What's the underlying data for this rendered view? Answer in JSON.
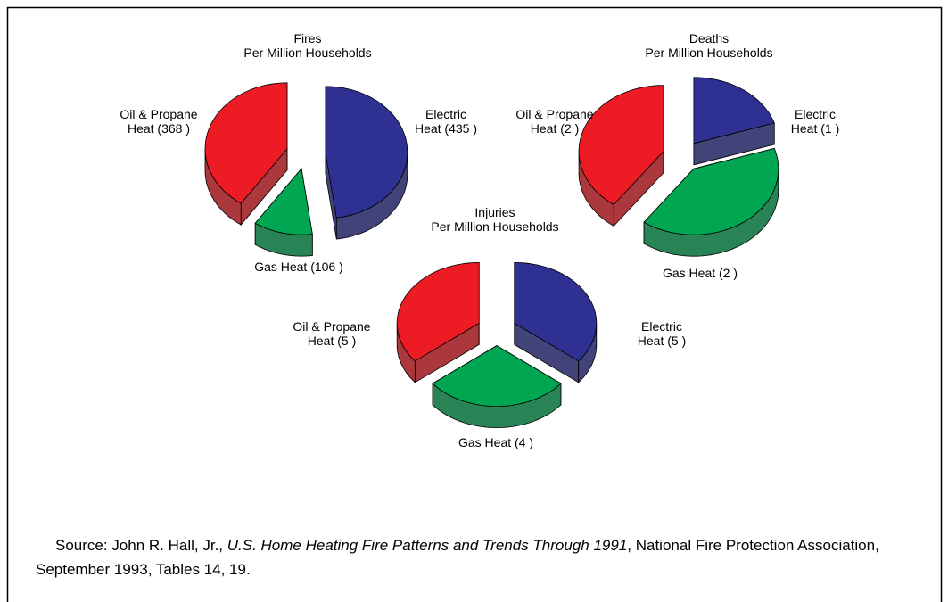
{
  "chart_data": [
    {
      "type": "pie",
      "title": [
        "Fires",
        "Per Million Households"
      ],
      "categories": [
        "Electric",
        "Gas",
        "Oil & Propane"
      ],
      "values": [
        435,
        106,
        368
      ],
      "value_labels": [
        [
          "Electric",
          "Heat (435 )"
        ],
        [
          "Gas Heat (106 )"
        ],
        [
          "Oil & Propane",
          "Heat (368 )"
        ]
      ],
      "colors": [
        "#2e3192",
        "#00a651",
        "#ed1c24"
      ]
    },
    {
      "type": "pie",
      "title": [
        "Deaths",
        "Per Million Households"
      ],
      "categories": [
        "Electric",
        "Gas",
        "Oil & Propane"
      ],
      "values": [
        1,
        2,
        2
      ],
      "value_labels": [
        [
          "Electric",
          "Heat (1 )"
        ],
        [
          "Gas Heat (2 )"
        ],
        [
          "Oil & Propane",
          "Heat (2 )"
        ]
      ],
      "colors": [
        "#2e3192",
        "#00a651",
        "#ed1c24"
      ]
    },
    {
      "type": "pie",
      "title": [
        "Injuries",
        "Per Million Households"
      ],
      "categories": [
        "Electric",
        "Gas",
        "Oil & Propane"
      ],
      "values": [
        5,
        4,
        5
      ],
      "value_labels": [
        [
          "Electric",
          "Heat (5 )"
        ],
        [
          "Gas Heat (4 )"
        ],
        [
          "Oil & Propane",
          "Heat (5 )"
        ]
      ],
      "colors": [
        "#2e3192",
        "#00a651",
        "#ed1c24"
      ]
    }
  ],
  "source": {
    "before": "Source: John R. Hall, Jr., ",
    "italic": "U.S. Home Heating Fire Patterns and Trends Through 1991",
    "after": ", National Fire Protection Association, September 1993, Tables 14, 19."
  }
}
